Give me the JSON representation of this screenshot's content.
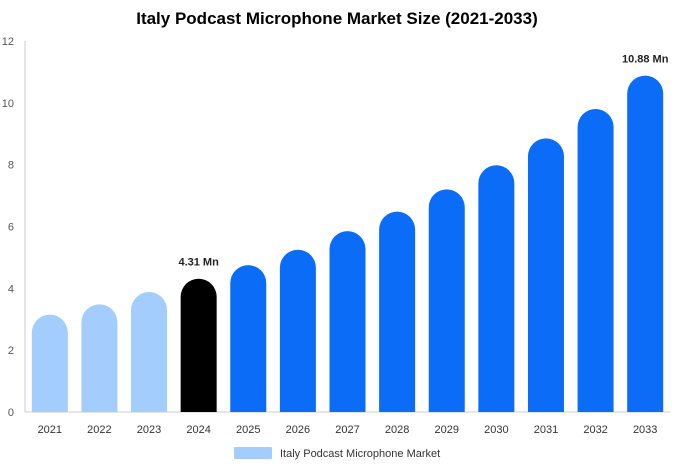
{
  "chart_data": {
    "type": "bar",
    "title": "Italy Podcast Microphone Market Size (2021-2033)",
    "xlabel": "",
    "ylabel": "",
    "ylim": [
      0,
      12
    ],
    "yticks": [
      "0",
      "2",
      "4",
      "6",
      "8",
      "10",
      "12"
    ],
    "categories": [
      "2021",
      "2022",
      "2023",
      "2024",
      "2025",
      "2026",
      "2027",
      "2028",
      "2029",
      "2030",
      "2031",
      "2032",
      "2033"
    ],
    "series": [
      {
        "name": "Italy Podcast Microphone Market",
        "values": [
          3.15,
          3.48,
          3.88,
          4.31,
          4.75,
          5.25,
          5.85,
          6.48,
          7.2,
          7.98,
          8.85,
          9.8,
          10.88
        ]
      }
    ],
    "data_labels": [
      {
        "index": 3,
        "text": "4.31 Mn"
      },
      {
        "index": 12,
        "text": "10.88 Mn"
      }
    ],
    "colors": {
      "historical": "#a3cdfc",
      "base_year": "#000000",
      "forecast": "#0b6cf7",
      "axis": "#cccccc",
      "legend_swatch": "#a3cdfc"
    },
    "grid": false,
    "legend_position": "bottom"
  }
}
